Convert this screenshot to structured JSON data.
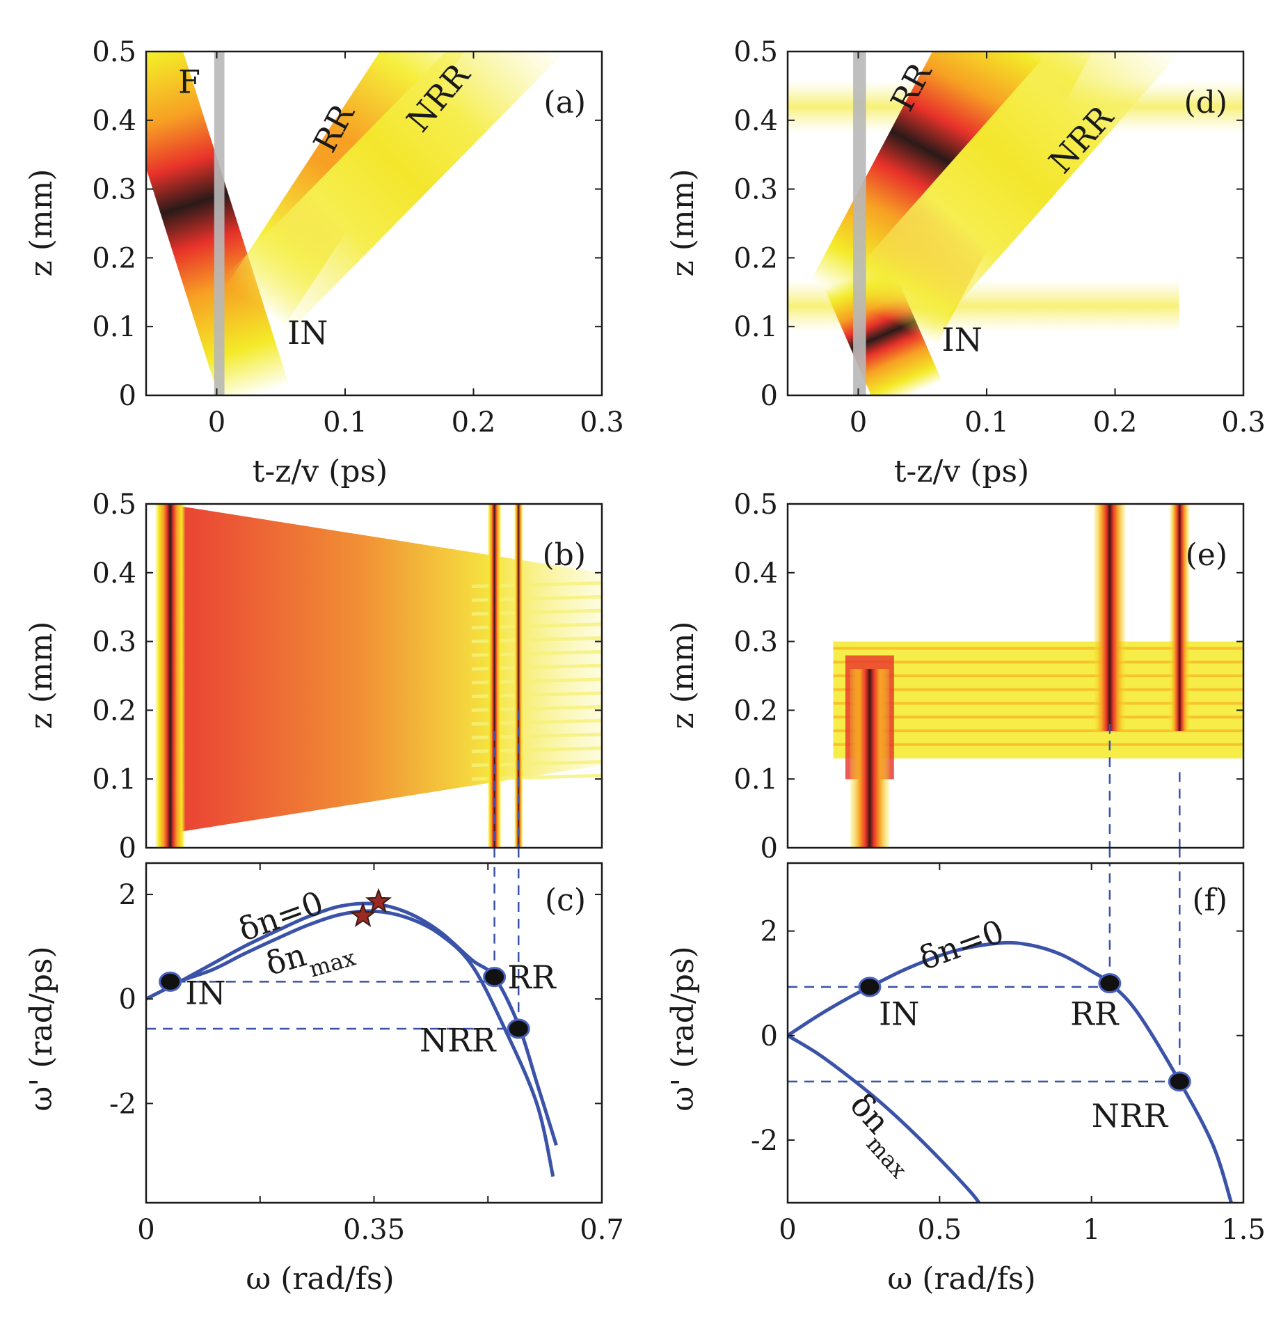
{
  "chart_data": [
    {
      "id": "a",
      "type": "heatmap",
      "panel_label": "(a)",
      "xlabel": "t-z/v (ps)",
      "ylabel": "z (mm)",
      "xlim": [
        -0.055,
        0.3
      ],
      "ylim": [
        0,
        0.5
      ],
      "xticks": [
        {
          "v": 0,
          "t": "0"
        },
        {
          "v": 0.1,
          "t": "0.1"
        },
        {
          "v": 0.2,
          "t": "0.2"
        },
        {
          "v": 0.3,
          "t": "0.3"
        }
      ],
      "yticks": [
        {
          "v": 0,
          "t": "0"
        },
        {
          "v": 0.1,
          "t": "0.1"
        },
        {
          "v": 0.2,
          "t": "0.2"
        },
        {
          "v": 0.3,
          "t": "0.3"
        },
        {
          "v": 0.4,
          "t": "0.4"
        },
        {
          "v": 0.5,
          "t": "0.5"
        }
      ],
      "marker_band": {
        "x": [
          -0.002,
          0.006
        ],
        "color": "#b8b8b8"
      },
      "beams": [
        {
          "name": "F",
          "x0": 0.03,
          "z0": 0.0,
          "x1": -0.055,
          "z1": 0.5,
          "width": 0.025,
          "peak": 1.0
        },
        {
          "name": "RR",
          "x0": 0.03,
          "z0": 0.13,
          "x1": 0.16,
          "z1": 0.5,
          "width": 0.025,
          "peak": 0.55
        },
        {
          "name": "NRR",
          "x0": 0.03,
          "z0": 0.13,
          "x1": 0.225,
          "z1": 0.5,
          "width": 0.03,
          "peak": 0.3
        }
      ],
      "annotations": [
        {
          "text": "F",
          "x": -0.03,
          "y": 0.44,
          "rotate": 0
        },
        {
          "text": "RR",
          "x": 0.09,
          "y": 0.35,
          "rotate": -62
        },
        {
          "text": "NRR",
          "x": 0.16,
          "y": 0.38,
          "rotate": -50
        },
        {
          "text": "IN",
          "x": 0.055,
          "y": 0.075,
          "rotate": 0
        }
      ]
    },
    {
      "id": "d",
      "type": "heatmap",
      "panel_label": "(d)",
      "xlabel": "t-z/v (ps)",
      "ylabel": "z (mm)",
      "xlim": [
        -0.055,
        0.3
      ],
      "ylim": [
        0,
        0.5
      ],
      "xticks": [
        {
          "v": 0,
          "t": "0"
        },
        {
          "v": 0.1,
          "t": "0.1"
        },
        {
          "v": 0.2,
          "t": "0.2"
        },
        {
          "v": 0.3,
          "t": "0.3"
        }
      ],
      "yticks": [
        {
          "v": 0,
          "t": "0"
        },
        {
          "v": 0.1,
          "t": "0.1"
        },
        {
          "v": 0.2,
          "t": "0.2"
        },
        {
          "v": 0.3,
          "t": "0.3"
        },
        {
          "v": 0.4,
          "t": "0.4"
        },
        {
          "v": 0.5,
          "t": "0.5"
        }
      ],
      "marker_band": {
        "x": [
          -0.004,
          0.006
        ],
        "color": "#b8b8b8"
      },
      "beams": [
        {
          "name": "IN",
          "x0": 0.04,
          "z0": 0.0,
          "x1": 0.012,
          "z1": 0.12,
          "width": 0.025,
          "peak": 1.0
        },
        {
          "name": "RR",
          "x0": 0.012,
          "z0": 0.12,
          "x1": 0.12,
          "z1": 0.5,
          "width": 0.05,
          "peak": 1.0
        },
        {
          "name": "NRR",
          "x0": 0.02,
          "z0": 0.12,
          "x1": 0.2,
          "z1": 0.5,
          "width": 0.035,
          "peak": 0.45
        }
      ],
      "stripes": [
        {
          "z": 0.13,
          "x0": -0.055,
          "x1": 0.25
        },
        {
          "z": 0.42,
          "x0": -0.055,
          "x1": 0.3
        }
      ],
      "annotations": [
        {
          "text": "RR",
          "x": 0.04,
          "y": 0.41,
          "rotate": -62
        },
        {
          "text": "NRR",
          "x": 0.16,
          "y": 0.32,
          "rotate": -48
        },
        {
          "text": "IN",
          "x": 0.065,
          "y": 0.065,
          "rotate": 0
        }
      ]
    },
    {
      "id": "b",
      "type": "heatmap",
      "panel_label": "(b)",
      "ylabel": "z (mm)",
      "xlim": [
        0,
        0.7
      ],
      "ylim": [
        0,
        0.5
      ],
      "yticks": [
        {
          "v": 0,
          "t": "0"
        },
        {
          "v": 0.1,
          "t": "0.1"
        },
        {
          "v": 0.2,
          "t": "0.2"
        },
        {
          "v": 0.3,
          "t": "0.3"
        },
        {
          "v": 0.4,
          "t": "0.4"
        },
        {
          "v": 0.5,
          "t": "0.5"
        }
      ],
      "lines": [
        {
          "omega": 0.037,
          "width": 0.018
        },
        {
          "omega": 0.535,
          "width": 0.008
        },
        {
          "omega": 0.572,
          "width": 0.005
        }
      ],
      "dashed_drops": [
        {
          "omega": 0.535,
          "z_top": 0.17
        },
        {
          "omega": 0.572,
          "z_top": 0.2
        }
      ]
    },
    {
      "id": "e",
      "type": "heatmap",
      "panel_label": "(e)",
      "ylabel": "z (mm)",
      "xlim": [
        0,
        1.5
      ],
      "ylim": [
        0,
        0.5
      ],
      "yticks": [
        {
          "v": 0,
          "t": "0"
        },
        {
          "v": 0.1,
          "t": "0.1"
        },
        {
          "v": 0.2,
          "t": "0.2"
        },
        {
          "v": 0.3,
          "t": "0.3"
        },
        {
          "v": 0.4,
          "t": "0.4"
        },
        {
          "v": 0.5,
          "t": "0.5"
        }
      ],
      "lines": [
        {
          "omega": 0.27,
          "width": 0.05
        },
        {
          "omega": 1.06,
          "width": 0.04
        },
        {
          "omega": 1.29,
          "width": 0.025
        }
      ],
      "dashed_drops": [
        {
          "omega": 1.06,
          "z_top": 0.18
        },
        {
          "omega": 1.29,
          "z_top": 0.11
        }
      ]
    },
    {
      "id": "c",
      "type": "line",
      "panel_label": "(c)",
      "xlabel": "ω (rad/fs)",
      "ylabel": "ω' (rad/ps)",
      "xlim": [
        0,
        0.7
      ],
      "ylim": [
        -3.9,
        2.6
      ],
      "xticks": [
        {
          "v": 0,
          "t": "0"
        },
        {
          "v": 0.35,
          "t": "0.35"
        },
        {
          "v": 0.7,
          "t": "0.7"
        }
      ],
      "minor_xticks": [
        0.175,
        0.525
      ],
      "yticks": [
        {
          "v": 2,
          "t": "2"
        },
        {
          "v": 0,
          "t": "0"
        },
        {
          "v": -2,
          "t": "-2"
        }
      ],
      "series": [
        {
          "name": "δn=0",
          "x": [
            0,
            0.05,
            0.1,
            0.15,
            0.2,
            0.25,
            0.3,
            0.35,
            0.4,
            0.45,
            0.5,
            0.535,
            0.572,
            0.6,
            0.63
          ],
          "y": [
            0,
            0.32,
            0.66,
            1.0,
            1.3,
            1.58,
            1.78,
            1.82,
            1.66,
            1.3,
            0.75,
            0.42,
            -0.5,
            -1.6,
            -2.8
          ]
        },
        {
          "name": "δnmax",
          "x": [
            0.04,
            0.1,
            0.15,
            0.2,
            0.25,
            0.3,
            0.35,
            0.4,
            0.45,
            0.5,
            0.55,
            0.6,
            0.625
          ],
          "y": [
            0.3,
            0.55,
            0.86,
            1.15,
            1.42,
            1.62,
            1.68,
            1.56,
            1.25,
            0.65,
            -0.55,
            -2.0,
            -3.4
          ]
        }
      ],
      "points": [
        {
          "name": "IN",
          "x": 0.037,
          "y": 0.33
        },
        {
          "name": "RR",
          "x": 0.535,
          "y": 0.42
        },
        {
          "name": "NRR",
          "x": 0.572,
          "y": -0.57
        }
      ],
      "stars": [
        {
          "x": 0.333,
          "y": 1.59
        },
        {
          "x": 0.357,
          "y": 1.86
        }
      ],
      "hlines": [
        {
          "y": 0.33,
          "x0": 0.02,
          "x1": 0.535
        },
        {
          "y": -0.57,
          "x0": 0,
          "x1": 0.572
        }
      ],
      "vlines": [
        {
          "x": 0.535,
          "y0": 0.42,
          "y1": 2.6
        },
        {
          "x": 0.572,
          "y0": -0.57,
          "y1": 2.6
        }
      ],
      "labels": [
        {
          "text": "IN",
          "x": 0.06,
          "y": -0.1,
          "rotate": 0
        },
        {
          "text": "RR",
          "x": 0.555,
          "y": 0.2,
          "rotate": 0
        },
        {
          "text": "NRR",
          "x": 0.42,
          "y": -1.0,
          "rotate": 0
        },
        {
          "text": "δn=0",
          "x": 0.15,
          "y": 1.1,
          "rotate": -20
        },
        {
          "text": "δn",
          "x": 0.19,
          "y": 0.45,
          "rotate": -16,
          "sub": "max"
        }
      ]
    },
    {
      "id": "f",
      "type": "line",
      "panel_label": "(f)",
      "xlabel": "ω (rad/fs)",
      "ylabel": "ω' (rad/ps)",
      "xlim": [
        0,
        1.5
      ],
      "ylim": [
        -3.2,
        3.3
      ],
      "xticks": [
        {
          "v": 0,
          "t": "0"
        },
        {
          "v": 0.5,
          "t": "0.5"
        },
        {
          "v": 1,
          "t": "1"
        },
        {
          "v": 1.5,
          "t": "1.5"
        }
      ],
      "yticks": [
        {
          "v": 2,
          "t": "2"
        },
        {
          "v": 0,
          "t": "0"
        },
        {
          "v": -2,
          "t": "-2"
        }
      ],
      "series": [
        {
          "name": "δn=0",
          "x": [
            0,
            0.1,
            0.2,
            0.27,
            0.4,
            0.55,
            0.7,
            0.8,
            0.9,
            1.0,
            1.06,
            1.15,
            1.29,
            1.4,
            1.46
          ],
          "y": [
            0,
            0.38,
            0.72,
            0.93,
            1.3,
            1.62,
            1.77,
            1.73,
            1.55,
            1.23,
            1.0,
            0.45,
            -0.88,
            -2.1,
            -3.2
          ]
        },
        {
          "name": "δnmax",
          "x": [
            0,
            0.1,
            0.2,
            0.3,
            0.4,
            0.5,
            0.6,
            0.63
          ],
          "y": [
            0,
            -0.35,
            -0.78,
            -1.25,
            -1.78,
            -2.36,
            -2.98,
            -3.2
          ]
        }
      ],
      "points": [
        {
          "name": "IN",
          "x": 0.27,
          "y": 0.93
        },
        {
          "name": "RR",
          "x": 1.06,
          "y": 1.0
        },
        {
          "name": "NRR",
          "x": 1.29,
          "y": -0.88
        }
      ],
      "hlines": [
        {
          "y": 0.93,
          "x0": 0,
          "x1": 1.06
        },
        {
          "y": -0.88,
          "x0": 0,
          "x1": 1.29
        }
      ],
      "vlines": [
        {
          "x": 1.06,
          "y0": 1.0,
          "y1": 3.3
        },
        {
          "x": 1.29,
          "y0": -0.88,
          "y1": 3.3
        }
      ],
      "labels": [
        {
          "text": "IN",
          "x": 0.3,
          "y": 0.2,
          "rotate": 0
        },
        {
          "text": "RR",
          "x": 0.93,
          "y": 0.2,
          "rotate": 0
        },
        {
          "text": "NRR",
          "x": 1.0,
          "y": -1.75,
          "rotate": 0
        },
        {
          "text": "δn=0",
          "x": 0.45,
          "y": 1.25,
          "rotate": -20
        },
        {
          "text": "δn",
          "x": 0.2,
          "y": -1.35,
          "rotate": 48,
          "sub": "max"
        }
      ]
    }
  ]
}
